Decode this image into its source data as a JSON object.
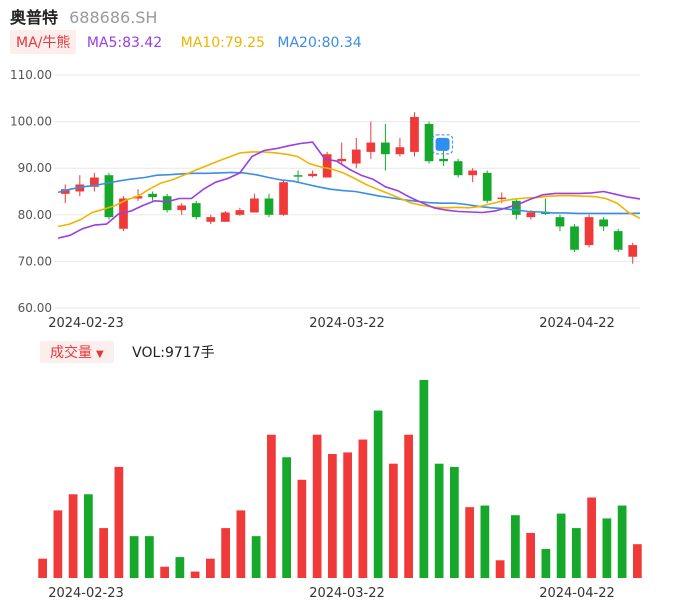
{
  "header": {
    "name": "奥普特",
    "code": "688686.SH"
  },
  "ma_legend": {
    "label": "MA/牛熊",
    "ma5": "MA5:83.42",
    "ma10": "MA10:79.25",
    "ma20": "MA20:80.34"
  },
  "volume_legend": {
    "label": "成交量",
    "value": "VOL:9717手"
  },
  "colors": {
    "up": "#f03a3a",
    "down": "#16a82b",
    "ma5": "#9b3ee0",
    "ma10": "#f0b400",
    "ma20": "#3a8ee6",
    "grid": "#e8e8e8",
    "axis_text": "#555555"
  },
  "chart_data": [
    {
      "type": "candlestick",
      "y_ticks": [
        "110.00",
        "100.00",
        "90.00",
        "80.00",
        "70.00",
        "60.00"
      ],
      "ylim": [
        60,
        110
      ],
      "x_labels": [
        "2024-02-23",
        "2024-03-22",
        "2024-04-22"
      ],
      "candles": [
        {
          "o": 84.5,
          "c": 85.5,
          "h": 86.5,
          "l": 82.5
        },
        {
          "o": 85.0,
          "c": 86.5,
          "h": 88.5,
          "l": 84.0
        },
        {
          "o": 86.0,
          "c": 88.0,
          "h": 89.0,
          "l": 85.0
        },
        {
          "o": 88.5,
          "c": 79.5,
          "h": 89.0,
          "l": 79.0
        },
        {
          "o": 77.0,
          "c": 83.5,
          "h": 84.0,
          "l": 76.5
        },
        {
          "o": 83.5,
          "c": 84.0,
          "h": 85.5,
          "l": 83.0
        },
        {
          "o": 84.5,
          "c": 83.8,
          "h": 85.0,
          "l": 83.0
        },
        {
          "o": 84.0,
          "c": 81.0,
          "h": 84.5,
          "l": 80.5
        },
        {
          "o": 81.0,
          "c": 82.0,
          "h": 82.5,
          "l": 80.0
        },
        {
          "o": 82.5,
          "c": 79.5,
          "h": 83.0,
          "l": 79.0
        },
        {
          "o": 78.5,
          "c": 79.5,
          "h": 80.0,
          "l": 78.0
        },
        {
          "o": 78.5,
          "c": 80.5,
          "h": 80.8,
          "l": 78.5
        },
        {
          "o": 80.0,
          "c": 81.0,
          "h": 81.5,
          "l": 79.8
        },
        {
          "o": 80.5,
          "c": 83.5,
          "h": 84.5,
          "l": 80.5
        },
        {
          "o": 83.5,
          "c": 80.0,
          "h": 84.5,
          "l": 79.5
        },
        {
          "o": 80.0,
          "c": 87.0,
          "h": 87.5,
          "l": 79.8
        },
        {
          "o": 88.5,
          "c": 88.3,
          "h": 89.5,
          "l": 87.0
        },
        {
          "o": 88.3,
          "c": 88.8,
          "h": 89.5,
          "l": 88.0
        },
        {
          "o": 88.0,
          "c": 93.0,
          "h": 93.5,
          "l": 88.0
        },
        {
          "o": 91.5,
          "c": 92.0,
          "h": 95.5,
          "l": 91.0
        },
        {
          "o": 91.0,
          "c": 94.0,
          "h": 96.5,
          "l": 90.0
        },
        {
          "o": 93.5,
          "c": 95.5,
          "h": 100.0,
          "l": 92.0
        },
        {
          "o": 95.5,
          "c": 93.0,
          "h": 99.5,
          "l": 89.5
        },
        {
          "o": 93.0,
          "c": 94.5,
          "h": 96.5,
          "l": 92.5
        },
        {
          "o": 93.5,
          "c": 101.0,
          "h": 102.0,
          "l": 92.5
        },
        {
          "o": 99.5,
          "c": 91.5,
          "h": 100.0,
          "l": 91.0
        },
        {
          "o": 92.0,
          "c": 91.5,
          "h": 94.0,
          "l": 90.5
        },
        {
          "o": 91.5,
          "c": 88.5,
          "h": 92.0,
          "l": 88.0
        },
        {
          "o": 88.5,
          "c": 89.5,
          "h": 90.0,
          "l": 87.0
        },
        {
          "o": 89.0,
          "c": 83.0,
          "h": 89.5,
          "l": 82.5
        },
        {
          "o": 83.5,
          "c": 83.7,
          "h": 84.8,
          "l": 82.5
        },
        {
          "o": 83.0,
          "c": 80.0,
          "h": 83.5,
          "l": 79.0
        },
        {
          "o": 79.5,
          "c": 80.5,
          "h": 81.0,
          "l": 79.0
        },
        {
          "o": 80.5,
          "c": 80.3,
          "h": 83.5,
          "l": 80.0
        },
        {
          "o": 79.5,
          "c": 77.5,
          "h": 80.0,
          "l": 76.5
        },
        {
          "o": 77.5,
          "c": 72.5,
          "h": 78.0,
          "l": 72.0
        },
        {
          "o": 73.5,
          "c": 79.5,
          "h": 80.0,
          "l": 73.0
        },
        {
          "o": 79.0,
          "c": 77.5,
          "h": 79.5,
          "l": 76.5
        },
        {
          "o": 76.5,
          "c": 72.5,
          "h": 77.0,
          "l": 72.0
        },
        {
          "o": 71.0,
          "c": 73.5,
          "h": 74.0,
          "l": 69.5
        }
      ],
      "ma5": [
        75.0,
        75.6,
        77.0,
        77.8,
        78.0,
        80.2,
        80.8,
        82.0,
        83.0,
        82.8,
        83.5,
        83.5,
        85.5,
        87.0,
        87.8,
        89.0,
        92.5,
        93.8,
        94.2,
        94.8,
        95.3,
        95.6,
        92.0,
        91.5,
        89.8,
        88.5,
        87.6,
        86.0,
        85.2,
        83.8,
        82.6,
        81.5,
        81.0,
        80.7,
        80.6,
        80.5,
        80.8,
        81.5,
        82.3,
        83.4,
        84.3,
        84.6,
        84.6,
        84.6,
        84.7,
        85.0,
        84.4,
        83.8,
        83.42
      ],
      "ma10": [
        77.5,
        78.0,
        79.0,
        80.5,
        81.2,
        82.0,
        83.2,
        84.0,
        85.5,
        86.8,
        87.5,
        88.5,
        89.5,
        90.5,
        91.5,
        92.4,
        93.3,
        93.5,
        93.5,
        93.3,
        93.0,
        92.5,
        91.0,
        90.3,
        89.8,
        89.0,
        87.8,
        86.5,
        85.5,
        84.5,
        83.5,
        82.5,
        82.0,
        81.6,
        81.5,
        81.6,
        81.5,
        81.8,
        82.4,
        83.0,
        83.4,
        83.6,
        83.7,
        84.0,
        84.1,
        84.1,
        84.0,
        83.9,
        83.5,
        82.5,
        80.5,
        79.25
      ],
      "ma20": [
        84.8,
        85.5,
        86.0,
        86.3,
        86.8,
        87.3,
        87.7,
        88.0,
        88.5,
        88.6,
        88.8,
        88.9,
        88.9,
        89.0,
        89.1,
        89.0,
        88.6,
        88.0,
        87.5,
        87.2,
        86.6,
        86.0,
        85.5,
        85.2,
        85.0,
        84.5,
        84.0,
        83.6,
        83.2,
        82.9,
        82.6,
        82.5,
        82.5,
        82.2,
        81.8,
        81.5,
        81.3,
        81.0,
        80.7,
        80.6,
        80.4,
        80.4,
        80.3,
        80.3,
        80.3,
        80.3,
        80.3,
        80.34
      ]
    },
    {
      "type": "bar",
      "volumes": [
        120,
        420,
        520,
        520,
        310,
        690,
        260,
        260,
        70,
        130,
        40,
        120,
        310,
        420,
        260,
        890,
        750,
        610,
        890,
        770,
        780,
        860,
        1040,
        710,
        890,
        1230,
        710,
        690,
        440,
        450,
        110,
        390,
        280,
        180,
        400,
        310,
        500,
        370,
        450,
        210
      ]
    }
  ]
}
